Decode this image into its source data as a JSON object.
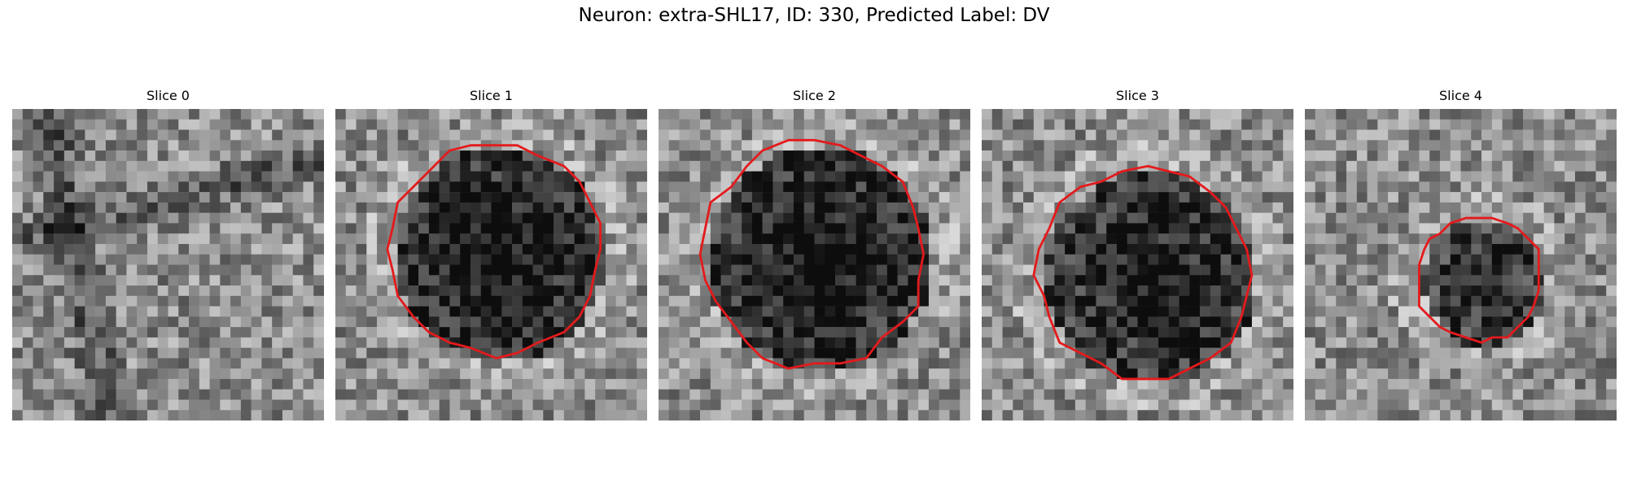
{
  "figure": {
    "title": "Neuron: extra-SHL17, ID: 330, Predicted Label: DV"
  },
  "style": {
    "contour_color": "#e41a1c"
  },
  "slices": [
    {
      "title": "Slice 0",
      "has_contour": false,
      "radius": 0,
      "dark": 0.0
    },
    {
      "title": "Slice 1",
      "has_contour": true,
      "radius": 0.34,
      "dark": 0.55
    },
    {
      "title": "Slice 2",
      "has_contour": true,
      "radius": 0.36,
      "dark": 0.55
    },
    {
      "title": "Slice 3",
      "has_contour": true,
      "radius": 0.34,
      "dark": 0.5
    },
    {
      "title": "Slice 4",
      "has_contour": true,
      "radius": 0.2,
      "dark": 0.45
    }
  ]
}
